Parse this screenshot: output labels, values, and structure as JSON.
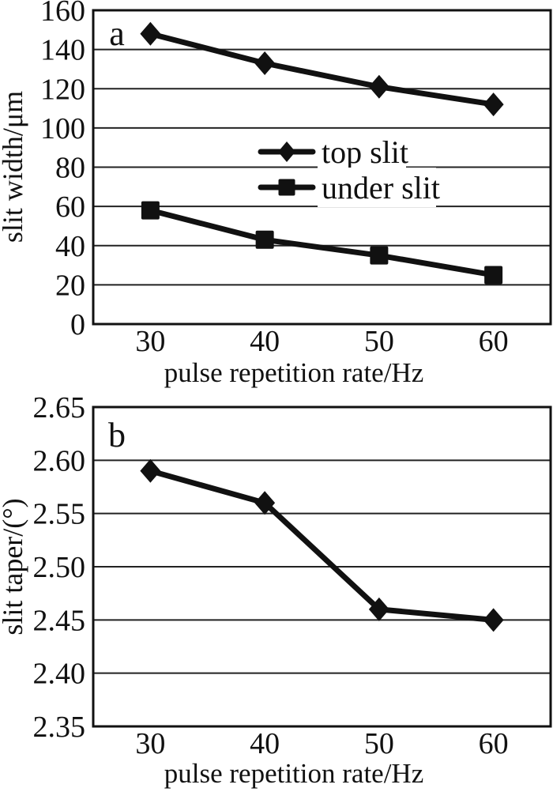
{
  "figure": {
    "background": "#ffffff",
    "ink": "#111111",
    "grid_color": "#222222"
  },
  "chart_data": [
    {
      "panel_label": "a",
      "type": "line",
      "xlabel": "pulse repetition rate/Hz",
      "ylabel": "slit width/μm",
      "categories": [
        30,
        40,
        50,
        60
      ],
      "xtick_labels": [
        "30",
        "40",
        "50",
        "60"
      ],
      "yticks": [
        0,
        20,
        40,
        60,
        80,
        100,
        120,
        140,
        160
      ],
      "ytick_labels": [
        "0",
        "20",
        "40",
        "60",
        "80",
        "100",
        "120",
        "140",
        "160"
      ],
      "ylim": [
        0,
        160
      ],
      "grid": "horizontal",
      "legend": {
        "position": "inside-middle-right",
        "entries": [
          "top slit",
          "under slit"
        ]
      },
      "series": [
        {
          "name": "top slit",
          "marker": "diamond",
          "values": [
            148,
            133,
            121,
            112
          ]
        },
        {
          "name": "under slit",
          "marker": "square",
          "values": [
            58,
            43,
            35,
            25
          ]
        }
      ]
    },
    {
      "panel_label": "b",
      "type": "line",
      "xlabel": "pulse repetition rate/Hz",
      "ylabel": "slit taper/(°)",
      "categories": [
        30,
        40,
        50,
        60
      ],
      "xtick_labels": [
        "30",
        "40",
        "50",
        "60"
      ],
      "yticks": [
        2.35,
        2.4,
        2.45,
        2.5,
        2.55,
        2.6,
        2.65
      ],
      "ytick_labels": [
        "2.35",
        "2.40",
        "2.45",
        "2.50",
        "2.55",
        "2.60",
        "2.65"
      ],
      "ylim": [
        2.35,
        2.65
      ],
      "grid": "horizontal",
      "legend": null,
      "series": [
        {
          "name": "",
          "marker": "diamond",
          "values": [
            2.59,
            2.56,
            2.46,
            2.45
          ]
        }
      ]
    }
  ]
}
